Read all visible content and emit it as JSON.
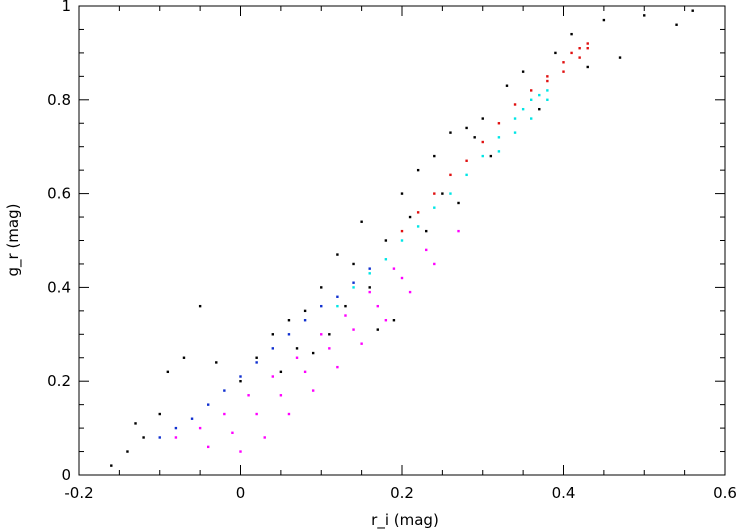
{
  "chart_data": {
    "type": "scatter",
    "title": "",
    "xlabel": "r_i (mag)",
    "ylabel": "g_r (mag)",
    "xlim": [
      -0.2,
      0.6
    ],
    "ylim": [
      0,
      1
    ],
    "x_ticks": [
      -0.2,
      0,
      0.2,
      0.4,
      0.6
    ],
    "y_ticks": [
      0,
      0.2,
      0.4,
      0.6,
      0.8,
      1
    ],
    "x_tick_labels": [
      "-0.2",
      "0",
      "0.2",
      "0.4",
      "0.6"
    ],
    "y_tick_labels": [
      "0",
      "0.2",
      "0.4",
      "0.6",
      "0.8",
      "1"
    ],
    "grid": false,
    "legend": "none",
    "series": [
      {
        "color": "#000000",
        "marker": "dot",
        "points": [
          [
            -0.16,
            0.02
          ],
          [
            -0.14,
            0.05
          ],
          [
            -0.13,
            0.11
          ],
          [
            -0.12,
            0.08
          ],
          [
            -0.1,
            0.13
          ],
          [
            -0.09,
            0.22
          ],
          [
            -0.07,
            0.25
          ],
          [
            -0.05,
            0.36
          ],
          [
            -0.03,
            0.24
          ],
          [
            0.0,
            0.2
          ],
          [
            0.02,
            0.25
          ],
          [
            0.04,
            0.3
          ],
          [
            0.05,
            0.22
          ],
          [
            0.06,
            0.33
          ],
          [
            0.07,
            0.27
          ],
          [
            0.08,
            0.35
          ],
          [
            0.09,
            0.26
          ],
          [
            0.1,
            0.4
          ],
          [
            0.11,
            0.3
          ],
          [
            0.12,
            0.47
          ],
          [
            0.13,
            0.36
          ],
          [
            0.14,
            0.45
          ],
          [
            0.15,
            0.54
          ],
          [
            0.16,
            0.4
          ],
          [
            0.17,
            0.31
          ],
          [
            0.18,
            0.5
          ],
          [
            0.19,
            0.33
          ],
          [
            0.2,
            0.6
          ],
          [
            0.21,
            0.55
          ],
          [
            0.22,
            0.65
          ],
          [
            0.23,
            0.52
          ],
          [
            0.24,
            0.68
          ],
          [
            0.25,
            0.6
          ],
          [
            0.26,
            0.73
          ],
          [
            0.27,
            0.58
          ],
          [
            0.28,
            0.74
          ],
          [
            0.29,
            0.72
          ],
          [
            0.3,
            0.76
          ],
          [
            0.31,
            0.68
          ],
          [
            0.33,
            0.83
          ],
          [
            0.35,
            0.86
          ],
          [
            0.37,
            0.78
          ],
          [
            0.39,
            0.9
          ],
          [
            0.41,
            0.94
          ],
          [
            0.43,
            0.87
          ],
          [
            0.45,
            0.97
          ],
          [
            0.47,
            0.89
          ],
          [
            0.5,
            0.98
          ],
          [
            0.54,
            0.96
          ],
          [
            0.56,
            0.99
          ]
        ]
      },
      {
        "color": "#e01010",
        "marker": "dot",
        "points": [
          [
            0.2,
            0.52
          ],
          [
            0.22,
            0.56
          ],
          [
            0.24,
            0.6
          ],
          [
            0.26,
            0.64
          ],
          [
            0.28,
            0.67
          ],
          [
            0.3,
            0.71
          ],
          [
            0.32,
            0.75
          ],
          [
            0.34,
            0.79
          ],
          [
            0.36,
            0.82
          ],
          [
            0.38,
            0.85
          ],
          [
            0.4,
            0.88
          ],
          [
            0.41,
            0.9
          ],
          [
            0.42,
            0.91
          ],
          [
            0.43,
            0.92
          ],
          [
            0.43,
            0.91
          ],
          [
            0.42,
            0.89
          ],
          [
            0.4,
            0.86
          ],
          [
            0.38,
            0.84
          ]
        ]
      },
      {
        "color": "#00e5e5",
        "marker": "dot",
        "points": [
          [
            0.12,
            0.36
          ],
          [
            0.14,
            0.4
          ],
          [
            0.16,
            0.43
          ],
          [
            0.18,
            0.46
          ],
          [
            0.2,
            0.5
          ],
          [
            0.22,
            0.53
          ],
          [
            0.24,
            0.57
          ],
          [
            0.26,
            0.6
          ],
          [
            0.28,
            0.64
          ],
          [
            0.3,
            0.68
          ],
          [
            0.32,
            0.72
          ],
          [
            0.34,
            0.76
          ],
          [
            0.35,
            0.78
          ],
          [
            0.36,
            0.8
          ],
          [
            0.37,
            0.81
          ],
          [
            0.38,
            0.82
          ],
          [
            0.38,
            0.8
          ],
          [
            0.36,
            0.76
          ],
          [
            0.34,
            0.73
          ],
          [
            0.32,
            0.69
          ]
        ]
      },
      {
        "color": "#ff00ff",
        "marker": "dot",
        "points": [
          [
            -0.08,
            0.08
          ],
          [
            -0.05,
            0.1
          ],
          [
            -0.02,
            0.13
          ],
          [
            0.01,
            0.17
          ],
          [
            0.04,
            0.21
          ],
          [
            0.07,
            0.25
          ],
          [
            0.1,
            0.3
          ],
          [
            0.13,
            0.34
          ],
          [
            0.16,
            0.39
          ],
          [
            0.19,
            0.44
          ],
          [
            -0.04,
            0.06
          ],
          [
            -0.01,
            0.09
          ],
          [
            0.02,
            0.13
          ],
          [
            0.05,
            0.17
          ],
          [
            0.08,
            0.22
          ],
          [
            0.11,
            0.27
          ],
          [
            0.14,
            0.31
          ],
          [
            0.17,
            0.36
          ],
          [
            0.2,
            0.42
          ],
          [
            0.23,
            0.48
          ],
          [
            0.0,
            0.05
          ],
          [
            0.03,
            0.08
          ],
          [
            0.06,
            0.13
          ],
          [
            0.09,
            0.18
          ],
          [
            0.12,
            0.23
          ],
          [
            0.15,
            0.28
          ],
          [
            0.18,
            0.33
          ],
          [
            0.21,
            0.39
          ],
          [
            0.24,
            0.45
          ],
          [
            0.27,
            0.52
          ]
        ]
      },
      {
        "color": "#1030d0",
        "marker": "dot",
        "points": [
          [
            -0.1,
            0.08
          ],
          [
            -0.08,
            0.1
          ],
          [
            -0.06,
            0.12
          ],
          [
            -0.04,
            0.15
          ],
          [
            -0.02,
            0.18
          ],
          [
            0.0,
            0.21
          ],
          [
            0.02,
            0.24
          ],
          [
            0.04,
            0.27
          ],
          [
            0.06,
            0.3
          ],
          [
            0.08,
            0.33
          ],
          [
            0.1,
            0.36
          ],
          [
            0.12,
            0.38
          ],
          [
            0.14,
            0.41
          ],
          [
            0.16,
            0.44
          ]
        ]
      }
    ]
  }
}
